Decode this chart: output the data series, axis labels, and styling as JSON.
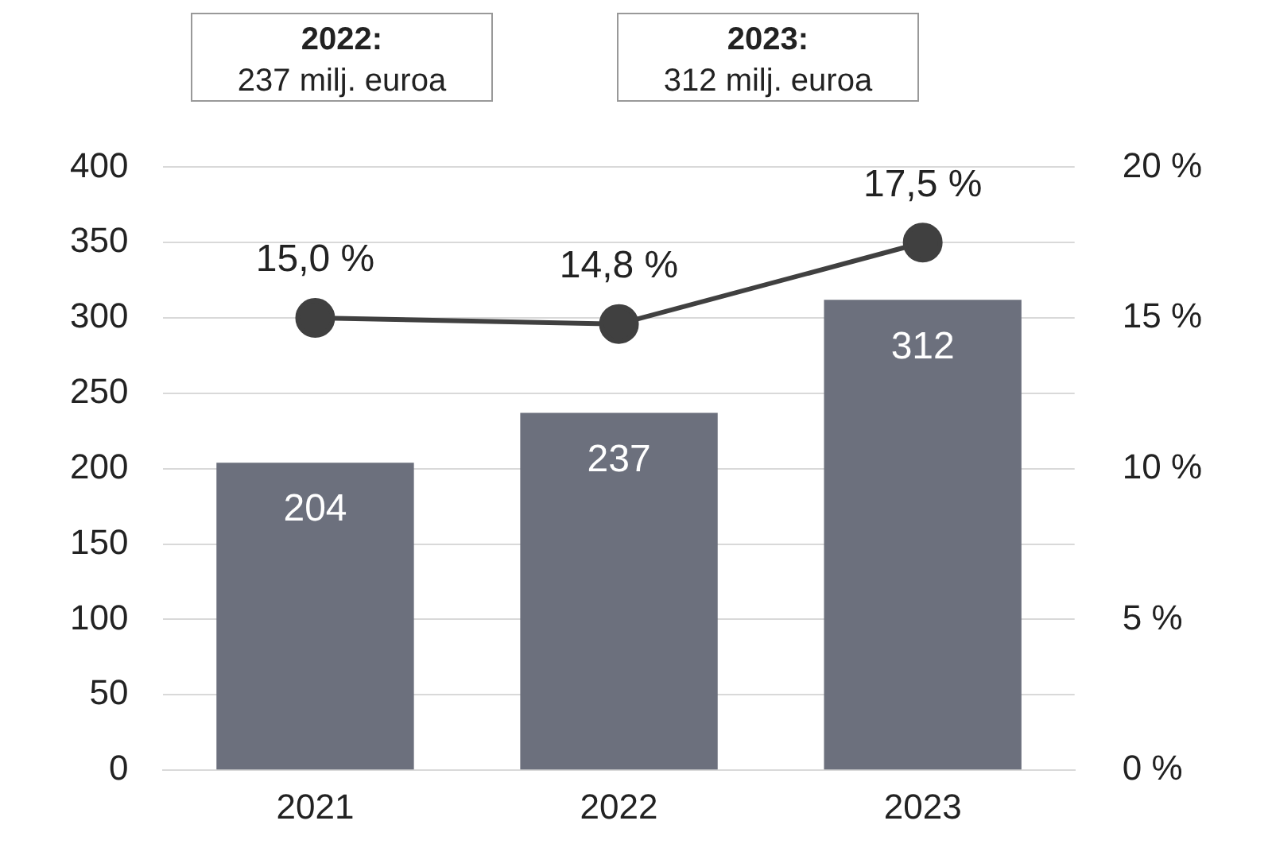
{
  "chart_data": {
    "type": "bar",
    "categories": [
      "2021",
      "2022",
      "2023"
    ],
    "series": [
      {
        "color": "#6c707d",
        "values": [
          204,
          237,
          312
        ],
        "value_labels": [
          "204",
          "237",
          "312"
        ]
      },
      {
        "type": "line",
        "axis": "y2",
        "color": "#404040",
        "values": [
          15.0,
          14.8,
          17.5
        ],
        "value_labels": [
          "15,0 %",
          "14,8 %",
          "17,5 %"
        ],
        "marker": "circle"
      }
    ],
    "ylim": [
      0,
      400
    ],
    "yticks": [
      0,
      50,
      100,
      150,
      200,
      250,
      300,
      350,
      400
    ],
    "y2lim": [
      0,
      20
    ],
    "y2ticks": [
      {
        "value": 0,
        "label": "0 %"
      },
      {
        "value": 5,
        "label": "5 %"
      },
      {
        "value": 10,
        "label": "10 %"
      },
      {
        "value": 15,
        "label": "15 %"
      },
      {
        "value": 20,
        "label": "20 %"
      }
    ],
    "grid": "y",
    "legend": false,
    "annotations": [
      "2022:\n237 milj. euroa",
      "2023:\n312 milj. euroa"
    ]
  }
}
